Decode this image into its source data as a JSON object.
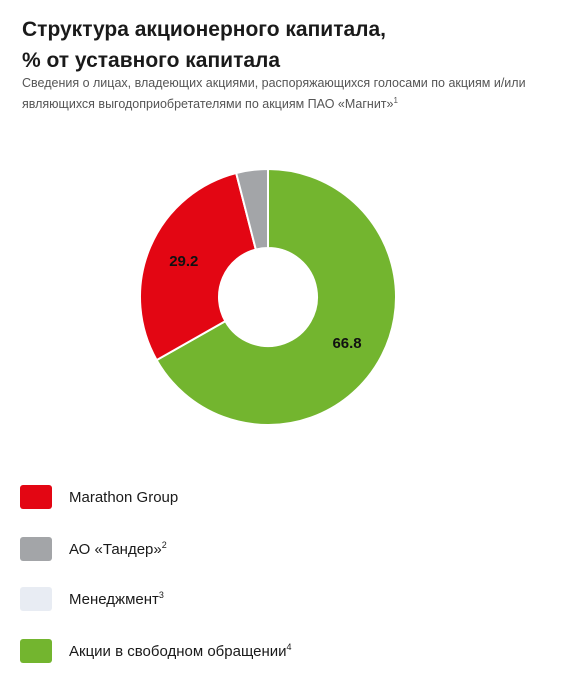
{
  "title_line1": "Структура акционерного капитала,",
  "title_line2": "% от уставного капитала",
  "subtitle_text": "Сведения о лицах, владеющих акциями, распоряжающихся голосами по акциям и/или являющихся выгодоприобретателями по акциям ПАО «Магнит»",
  "subtitle_note": "1",
  "colors": {
    "marathon": "#e30613",
    "tander": "#a3a5a8",
    "management": "#e8ecf3",
    "free_float": "#73b52f"
  },
  "chart_data": {
    "type": "pie",
    "variant": "donut",
    "slices": [
      {
        "name": "Акции в свободном обращении",
        "value": 66.8,
        "label": "66.8",
        "color": "#73b52f"
      },
      {
        "name": "Marathon Group",
        "value": 29.2,
        "label": "29.2",
        "color": "#e30613"
      },
      {
        "name": "АО «Тандер»",
        "value": 4.0,
        "label": "",
        "color": "#a3a5a8"
      },
      {
        "name": "Менеджмент",
        "value": 0,
        "label": "",
        "color": "#e8ecf3"
      }
    ]
  },
  "legend": [
    {
      "label": "Marathon Group",
      "note": "",
      "color": "#e30613"
    },
    {
      "label": "АО «Тандер»",
      "note": "2",
      "color": "#a3a5a8"
    },
    {
      "label": "Менеджмент",
      "note": "3",
      "color": "#e8ecf3"
    },
    {
      "label": "Акции в свободном обращении",
      "note": "4",
      "color": "#73b52f"
    }
  ]
}
